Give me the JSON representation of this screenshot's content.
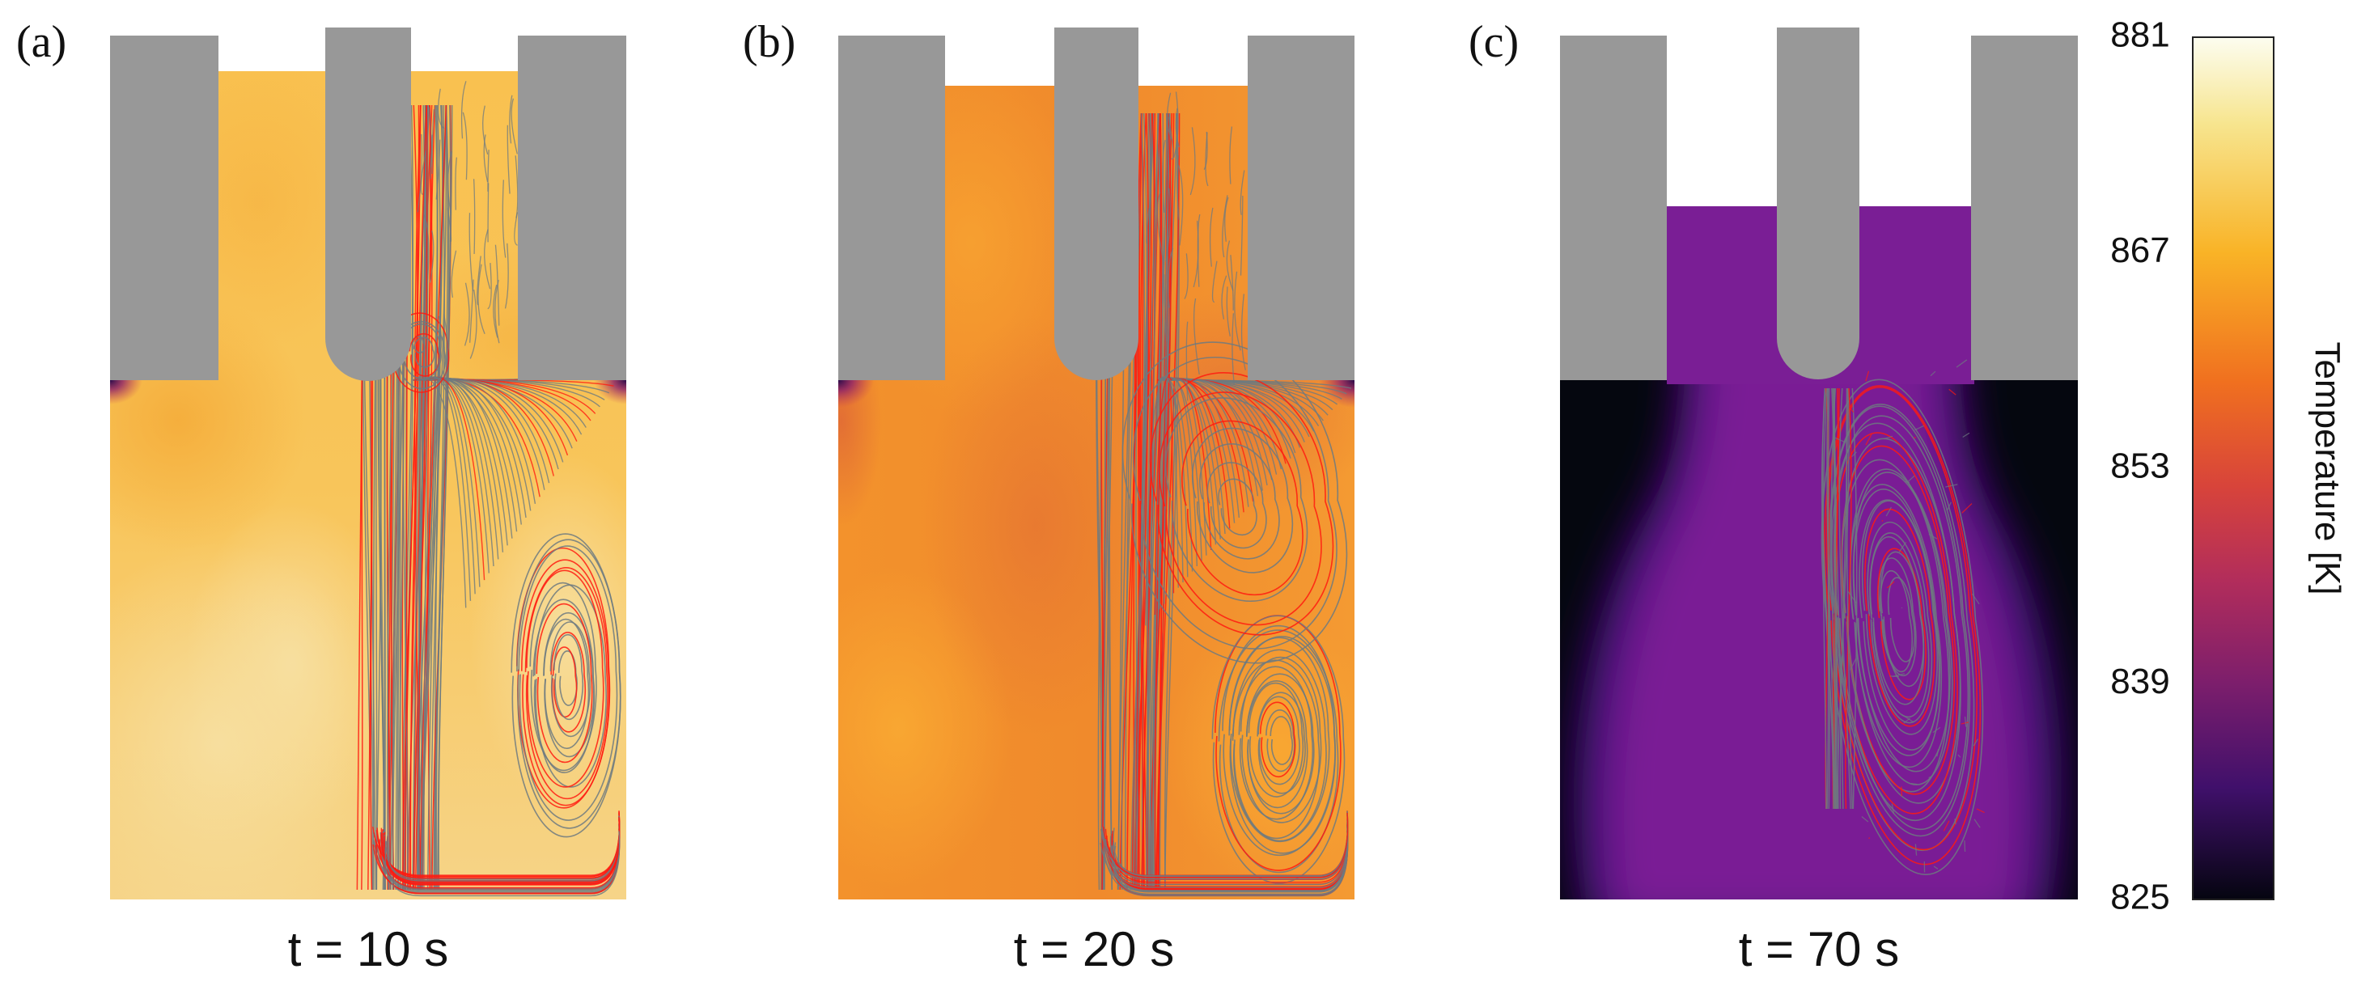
{
  "panels": [
    {
      "id": "a",
      "letter": "(a)",
      "time_label": "t = 10 s",
      "melt_level": "high",
      "field": "warm"
    },
    {
      "id": "b",
      "letter": "(b)",
      "time_label": "t = 20 s",
      "melt_level": "high",
      "field": "orange"
    },
    {
      "id": "c",
      "letter": "(c)",
      "time_label": "t = 70 s",
      "melt_level": "low",
      "field": "cold"
    }
  ],
  "colorbar": {
    "title": "Temperature [K]",
    "ticks": [
      "881",
      "867",
      "853",
      "839",
      "825"
    ],
    "min": 825,
    "max": 881,
    "colormap": "inferno"
  },
  "colors": {
    "solid_gray": "#989898",
    "streamline_gray": "#6d7a80",
    "streamline_red": "#ff1a10",
    "cold_background": "#05070f",
    "cold_melt": "#7a1e95"
  }
}
